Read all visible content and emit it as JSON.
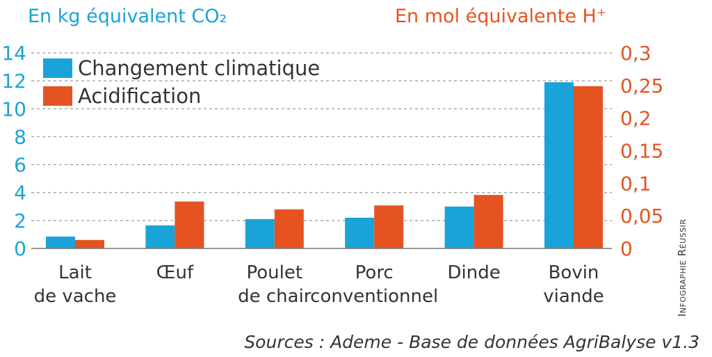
{
  "chart_data": {
    "type": "bar",
    "categories": [
      [
        "Lait",
        "de vache"
      ],
      [
        "Œuf"
      ],
      [
        "Poulet",
        "de chair"
      ],
      [
        "Porc",
        "conventionnel"
      ],
      [
        "Dinde"
      ],
      [
        "Bovin",
        "viande"
      ]
    ],
    "series": [
      {
        "name": "Changement climatique",
        "axis": "left",
        "color": "#1aa3d8",
        "values": [
          0.85,
          1.65,
          2.1,
          2.2,
          3.0,
          11.9
        ]
      },
      {
        "name": "Acidification",
        "axis": "right",
        "color": "#e55321",
        "values": [
          0.013,
          0.072,
          0.06,
          0.066,
          0.082,
          0.249
        ]
      }
    ],
    "y_left": {
      "label": "En kg équivalent CO₂",
      "color": "#1aa3d8",
      "ylim": [
        0,
        14
      ],
      "ticks": [
        0,
        2,
        4,
        6,
        8,
        10,
        12,
        14
      ],
      "tick_labels": [
        "0",
        "2",
        "4",
        "6",
        "8",
        "10",
        "12",
        "14"
      ]
    },
    "y_right": {
      "label": "En mol équivalente H⁺",
      "color": "#e55321",
      "ylim": [
        0,
        0.3
      ],
      "ticks": [
        0,
        0.05,
        0.1,
        0.15,
        0.2,
        0.25,
        0.3
      ],
      "tick_labels": [
        "0",
        "0,05",
        "0,1",
        "0,15",
        "0,2",
        "0,25",
        "0,3"
      ]
    },
    "grid": true,
    "legend": "top-left"
  },
  "credit": "Infographie Réussir",
  "source": "Sources : Ademe - Base de données AgriBalyse v1.3"
}
